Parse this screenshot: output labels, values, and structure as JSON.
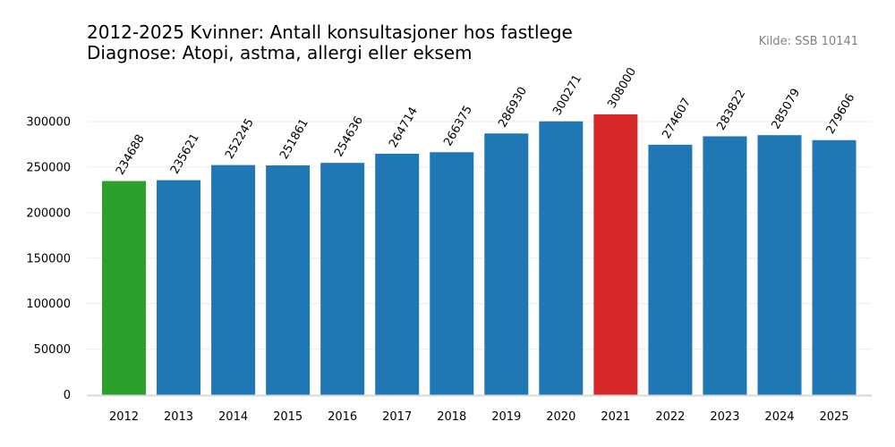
{
  "chart_data": {
    "type": "bar",
    "title": "2012-2025 Kvinner: Antall konsultasjoner hos fastlege",
    "subtitle": "Diagnose: Atopi, astma, allergi eller eksem",
    "source": "Kilde: SSB 10141",
    "xlabel": "",
    "ylabel": "",
    "categories": [
      "2012",
      "2013",
      "2014",
      "2015",
      "2016",
      "2017",
      "2018",
      "2019",
      "2020",
      "2021",
      "2022",
      "2023",
      "2024",
      "2025"
    ],
    "values": [
      234688,
      235621,
      252245,
      251861,
      254636,
      264714,
      266375,
      286930,
      300271,
      308000,
      274607,
      283822,
      285079,
      279606
    ],
    "data_labels": [
      "234688",
      "235621",
      "252245",
      "251861",
      "254636",
      "264714",
      "266375",
      "286930",
      "300271",
      "308000",
      "274607",
      "283822",
      "285079",
      "279606"
    ],
    "ylim": [
      0,
      340000
    ],
    "yticks": [
      0,
      50000,
      100000,
      150000,
      200000,
      250000,
      300000
    ],
    "ytick_labels": [
      "0",
      "50000",
      "100000",
      "150000",
      "200000",
      "250000",
      "300000"
    ],
    "grid": "horizontal",
    "legend": "none",
    "colors": {
      "default": "#1f77b4",
      "min": "#2ca02c",
      "max": "#d62728",
      "grid": "#ebebeb",
      "baseline": "#d9d9d9",
      "source": "#808080"
    },
    "highlight": {
      "min_category": "2012",
      "max_category": "2021"
    }
  }
}
